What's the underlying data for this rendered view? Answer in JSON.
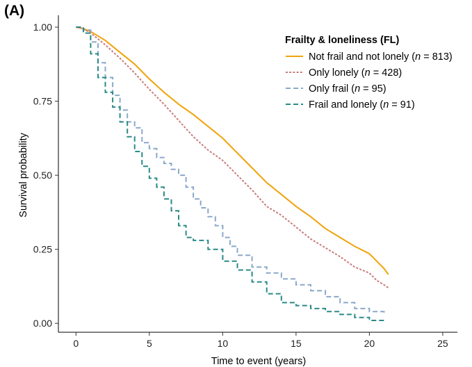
{
  "panel_label": "(A)",
  "chart_data": {
    "type": "line",
    "title": "",
    "xlabel": "Time to event (years)",
    "ylabel": "Survival probability",
    "xlim": [
      -1.2,
      26
    ],
    "ylim": [
      -0.03,
      1.04
    ],
    "x_ticks": [
      0,
      5,
      10,
      15,
      20,
      25
    ],
    "y_ticks": [
      0.0,
      0.25,
      0.5,
      0.75,
      1.0
    ],
    "x_tick_labels": [
      "0",
      "5",
      "10",
      "15",
      "20",
      "25"
    ],
    "y_tick_labels": [
      "0.00",
      "0.25",
      "0.50",
      "0.75",
      "1.00"
    ],
    "grid": false,
    "legend": {
      "title": "Frailty & loneliness (FL)",
      "position": "top-right",
      "entries": [
        {
          "label": "Not frail and not lonely",
          "n_text": " = 813)"
        },
        {
          "label": "Only lonely",
          "n_text": " = 428)"
        },
        {
          "label": "Only frail",
          "n_text": " = 95)"
        },
        {
          "label": "Frail and lonely",
          "n_text": " = 91)"
        }
      ]
    },
    "series": [
      {
        "name": "Not frail and not lonely (n = 813)",
        "color": "#F0A30A",
        "dash": "solid",
        "step": false,
        "x": [
          0,
          0.5,
          1,
          1.5,
          2,
          3,
          4,
          5,
          6,
          7,
          8,
          9,
          10,
          11,
          12,
          13,
          14,
          15,
          16,
          17,
          18,
          19,
          20,
          20.5,
          21,
          21.3
        ],
        "y": [
          1.0,
          0.995,
          0.985,
          0.97,
          0.955,
          0.915,
          0.875,
          0.825,
          0.78,
          0.74,
          0.705,
          0.665,
          0.625,
          0.575,
          0.525,
          0.475,
          0.435,
          0.395,
          0.36,
          0.32,
          0.29,
          0.26,
          0.235,
          0.21,
          0.185,
          0.165
        ]
      },
      {
        "name": "Only lonely (n = 428)",
        "color": "#C87C7A",
        "dash": "dotted",
        "step": false,
        "x": [
          0,
          0.5,
          1,
          1.5,
          2,
          3,
          4,
          5,
          6,
          7,
          8,
          9,
          10,
          11,
          12,
          13,
          14,
          15,
          16,
          17,
          18,
          19,
          20,
          20.5,
          21,
          21.3
        ],
        "y": [
          1.0,
          0.995,
          0.98,
          0.96,
          0.94,
          0.895,
          0.845,
          0.79,
          0.74,
          0.685,
          0.63,
          0.585,
          0.55,
          0.5,
          0.45,
          0.395,
          0.365,
          0.325,
          0.285,
          0.255,
          0.225,
          0.19,
          0.17,
          0.145,
          0.13,
          0.12
        ]
      },
      {
        "name": "Only frail (n = 95)",
        "color": "#8BA8C8",
        "dash": "dashed",
        "step": true,
        "x": [
          0,
          0.5,
          1,
          1.5,
          2,
          2.5,
          3,
          3.5,
          4,
          4.5,
          5,
          5.5,
          6,
          6.5,
          7,
          7.5,
          8,
          8.5,
          9,
          9.5,
          10,
          10.5,
          11,
          12,
          13,
          14,
          15,
          16,
          17,
          18,
          19,
          20,
          21
        ],
        "y": [
          1.0,
          0.99,
          0.95,
          0.88,
          0.83,
          0.77,
          0.72,
          0.68,
          0.66,
          0.61,
          0.59,
          0.56,
          0.54,
          0.52,
          0.5,
          0.46,
          0.42,
          0.39,
          0.36,
          0.33,
          0.29,
          0.26,
          0.23,
          0.19,
          0.17,
          0.15,
          0.13,
          0.11,
          0.09,
          0.07,
          0.05,
          0.04,
          0.03
        ]
      },
      {
        "name": "Frail and lonely (n = 91)",
        "color": "#2A8A87",
        "dash": "dashed",
        "step": true,
        "x": [
          0,
          0.5,
          1,
          1.5,
          2,
          2.5,
          3,
          3.5,
          4,
          4.5,
          5,
          5.5,
          6,
          6.5,
          7,
          7.5,
          8,
          9,
          10,
          11,
          12,
          13,
          14,
          15,
          16,
          17,
          18,
          19,
          20,
          21
        ],
        "y": [
          1.0,
          0.98,
          0.91,
          0.83,
          0.78,
          0.73,
          0.68,
          0.63,
          0.58,
          0.53,
          0.49,
          0.46,
          0.42,
          0.38,
          0.33,
          0.29,
          0.28,
          0.25,
          0.21,
          0.18,
          0.14,
          0.1,
          0.07,
          0.06,
          0.05,
          0.04,
          0.03,
          0.02,
          0.01,
          0.01
        ]
      }
    ]
  }
}
